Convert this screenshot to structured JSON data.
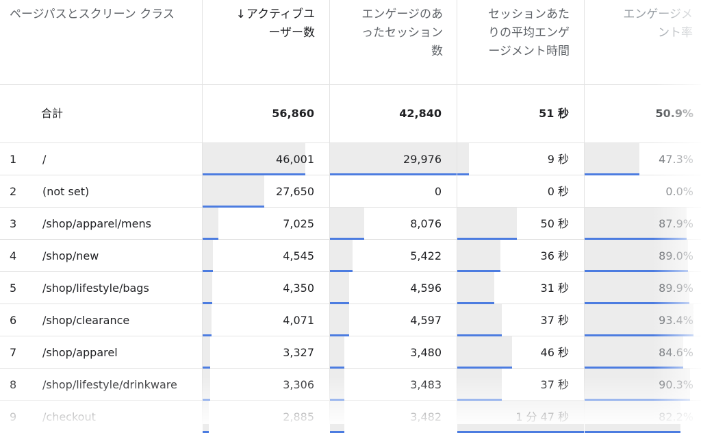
{
  "headers": {
    "page_path": "ページパスとスクリーン クラス",
    "active_users": "アクティブユーザー数",
    "engaged_sessions": "エンゲージのあったセッション数",
    "avg_time": "セッションあたりの平均エンゲージメント時間",
    "engagement_rate": "エンゲージメント率",
    "sort_indicator": "↓"
  },
  "totals": {
    "label": "合計",
    "active_users": "56,860",
    "engaged_sessions": "42,840",
    "avg_time": "51 秒",
    "engagement_rate": "50.9%"
  },
  "rows": [
    {
      "no": "1",
      "path": "/",
      "users": "46,001",
      "sessions": "29,976",
      "time": "9 秒",
      "rate": "47.3%",
      "bars": {
        "users": 0.809,
        "sessions": 1.0,
        "time": 0.09,
        "rate": 0.473
      }
    },
    {
      "no": "2",
      "path": "(not set)",
      "users": "27,650",
      "sessions": "0",
      "time": "0 秒",
      "rate": "0.0%",
      "bars": {
        "users": 0.486,
        "sessions": 0.0,
        "time": 0.0,
        "rate": 0.0
      }
    },
    {
      "no": "3",
      "path": "/shop/apparel/mens",
      "users": "7,025",
      "sessions": "8,076",
      "time": "50 秒",
      "rate": "87.9%",
      "bars": {
        "users": 0.124,
        "sessions": 0.27,
        "time": 0.47,
        "rate": 0.879
      }
    },
    {
      "no": "4",
      "path": "/shop/new",
      "users": "4,545",
      "sessions": "5,422",
      "time": "36 秒",
      "rate": "89.0%",
      "bars": {
        "users": 0.08,
        "sessions": 0.181,
        "time": 0.34,
        "rate": 0.89
      }
    },
    {
      "no": "5",
      "path": "/shop/lifestyle/bags",
      "users": "4,350",
      "sessions": "4,596",
      "time": "31 秒",
      "rate": "89.9%",
      "bars": {
        "users": 0.077,
        "sessions": 0.153,
        "time": 0.29,
        "rate": 0.899
      }
    },
    {
      "no": "6",
      "path": "/shop/clearance",
      "users": "4,071",
      "sessions": "4,597",
      "time": "37 秒",
      "rate": "93.4%",
      "bars": {
        "users": 0.072,
        "sessions": 0.153,
        "time": 0.35,
        "rate": 0.934
      }
    },
    {
      "no": "7",
      "path": "/shop/apparel",
      "users": "3,327",
      "sessions": "3,480",
      "time": "46 秒",
      "rate": "84.6%",
      "bars": {
        "users": 0.059,
        "sessions": 0.116,
        "time": 0.43,
        "rate": 0.846
      }
    },
    {
      "no": "8",
      "path": "/shop/lifestyle/drinkware",
      "users": "3,306",
      "sessions": "3,483",
      "time": "37 秒",
      "rate": "90.3%",
      "bars": {
        "users": 0.058,
        "sessions": 0.116,
        "time": 0.35,
        "rate": 0.903
      }
    },
    {
      "no": "9",
      "path": "/checkout",
      "users": "2,885",
      "sessions": "3,482",
      "time": "1 分 47 秒",
      "rate": "82.2%",
      "bars": {
        "users": 0.051,
        "sessions": 0.116,
        "time": 1.0,
        "rate": 0.822
      }
    }
  ],
  "colors": {
    "bar_line": "#4c7ce0",
    "bar_fill": "#ececec"
  }
}
